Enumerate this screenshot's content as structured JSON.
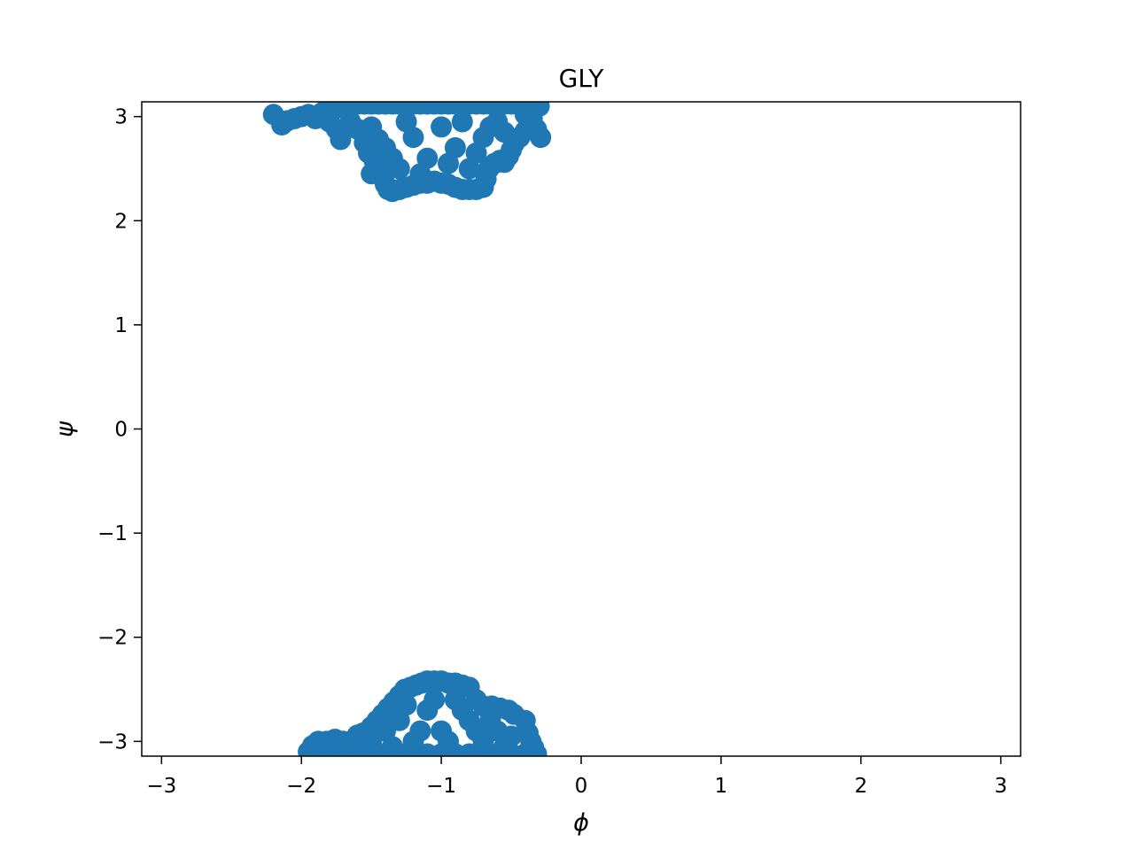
{
  "chart_data": {
    "type": "scatter",
    "title": "GLY",
    "xlabel": "ϕ",
    "ylabel": "ψ",
    "xlim": [
      -3.1416,
      3.1416
    ],
    "ylim": [
      -3.1416,
      3.1416
    ],
    "x_ticks": [
      {
        "value": -3,
        "label": "−3"
      },
      {
        "value": -2,
        "label": "−2"
      },
      {
        "value": -1,
        "label": "−1"
      },
      {
        "value": 0,
        "label": "0"
      },
      {
        "value": 1,
        "label": "1"
      },
      {
        "value": 2,
        "label": "2"
      },
      {
        "value": 3,
        "label": "3"
      }
    ],
    "y_ticks": [
      {
        "value": 3,
        "label": "3"
      },
      {
        "value": 2,
        "label": "2"
      },
      {
        "value": 1,
        "label": "1"
      },
      {
        "value": 0,
        "label": "0"
      },
      {
        "value": -1,
        "label": "−1"
      },
      {
        "value": -2,
        "label": "−2"
      },
      {
        "value": -3,
        "label": "−3"
      }
    ],
    "grid": false,
    "marker_color": "#1f77b4",
    "series": [
      {
        "points": [
          [
            -2.2,
            3.02
          ],
          [
            -2.14,
            2.92
          ],
          [
            -2.1,
            2.96
          ],
          [
            -2.05,
            2.98
          ],
          [
            -2.0,
            3.0
          ],
          [
            -1.95,
            3.02
          ],
          [
            -1.9,
            2.98
          ],
          [
            -1.85,
            3.04
          ],
          [
            -1.8,
            3.06
          ],
          [
            -1.75,
            3.08
          ],
          [
            -1.7,
            3.1
          ],
          [
            -1.65,
            3.12
          ],
          [
            -1.6,
            3.12
          ],
          [
            -1.55,
            3.12
          ],
          [
            -1.5,
            3.12
          ],
          [
            -1.45,
            3.12
          ],
          [
            -1.4,
            3.12
          ],
          [
            -1.35,
            3.12
          ],
          [
            -1.3,
            3.12
          ],
          [
            -1.25,
            3.12
          ],
          [
            -1.2,
            3.12
          ],
          [
            -1.15,
            3.12
          ],
          [
            -1.1,
            3.12
          ],
          [
            -1.05,
            3.12
          ],
          [
            -1.0,
            3.12
          ],
          [
            -0.95,
            3.12
          ],
          [
            -0.9,
            3.12
          ],
          [
            -0.85,
            3.12
          ],
          [
            -0.8,
            3.12
          ],
          [
            -0.75,
            3.12
          ],
          [
            -0.7,
            3.12
          ],
          [
            -0.65,
            3.12
          ],
          [
            -0.6,
            3.12
          ],
          [
            -0.55,
            3.12
          ],
          [
            -0.5,
            3.12
          ],
          [
            -0.45,
            3.12
          ],
          [
            -0.4,
            3.12
          ],
          [
            -0.35,
            3.1
          ],
          [
            -0.3,
            3.1
          ],
          [
            -1.8,
            2.95
          ],
          [
            -1.75,
            2.88
          ],
          [
            -1.72,
            2.78
          ],
          [
            -1.65,
            2.95
          ],
          [
            -1.6,
            2.88
          ],
          [
            -1.55,
            2.75
          ],
          [
            -1.52,
            2.65
          ],
          [
            -1.48,
            2.58
          ],
          [
            -1.45,
            2.5
          ],
          [
            -1.42,
            2.42
          ],
          [
            -1.4,
            2.35
          ],
          [
            -1.38,
            2.3
          ],
          [
            -1.35,
            2.28
          ],
          [
            -1.3,
            2.3
          ],
          [
            -1.25,
            2.32
          ],
          [
            -1.2,
            2.34
          ],
          [
            -1.15,
            2.36
          ],
          [
            -1.1,
            2.36
          ],
          [
            -1.05,
            2.38
          ],
          [
            -1.0,
            2.36
          ],
          [
            -0.95,
            2.35
          ],
          [
            -0.9,
            2.32
          ],
          [
            -0.85,
            2.3
          ],
          [
            -0.8,
            2.3
          ],
          [
            -0.75,
            2.3
          ],
          [
            -0.7,
            2.32
          ],
          [
            -0.68,
            2.4
          ],
          [
            -0.66,
            2.5
          ],
          [
            -0.62,
            2.55
          ],
          [
            -0.58,
            2.58
          ],
          [
            -0.55,
            2.56
          ],
          [
            -0.52,
            2.62
          ],
          [
            -0.5,
            2.68
          ],
          [
            -0.48,
            2.74
          ],
          [
            -0.44,
            2.8
          ],
          [
            -0.4,
            2.86
          ],
          [
            -0.36,
            2.9
          ],
          [
            -0.32,
            2.88
          ],
          [
            -0.29,
            2.8
          ],
          [
            -0.35,
            2.98
          ],
          [
            -0.4,
            3.02
          ],
          [
            -1.5,
            2.9
          ],
          [
            -1.4,
            2.7
          ],
          [
            -1.3,
            2.5
          ],
          [
            -1.2,
            2.8
          ],
          [
            -1.1,
            2.6
          ],
          [
            -1.0,
            2.9
          ],
          [
            -0.9,
            2.7
          ],
          [
            -0.8,
            2.5
          ],
          [
            -0.7,
            2.8
          ],
          [
            -0.6,
            2.95
          ],
          [
            -1.5,
            2.45
          ],
          [
            -1.25,
            2.95
          ],
          [
            -1.15,
            2.45
          ],
          [
            -0.95,
            2.55
          ],
          [
            -0.85,
            2.95
          ],
          [
            -0.75,
            2.65
          ],
          [
            -0.65,
            2.9
          ],
          [
            -0.55,
            2.85
          ],
          [
            -1.45,
            2.78
          ],
          [
            -1.35,
            2.6
          ],
          [
            -1.95,
            -3.1
          ],
          [
            -1.92,
            -3.04
          ],
          [
            -1.88,
            -3.0
          ],
          [
            -1.82,
            -3.0
          ],
          [
            -1.76,
            -2.98
          ],
          [
            -1.7,
            -3.0
          ],
          [
            -1.64,
            -3.02
          ],
          [
            -1.6,
            -2.94
          ],
          [
            -1.56,
            -2.92
          ],
          [
            -1.5,
            -2.86
          ],
          [
            -1.46,
            -2.8
          ],
          [
            -1.42,
            -2.74
          ],
          [
            -1.38,
            -2.68
          ],
          [
            -1.34,
            -2.62
          ],
          [
            -1.3,
            -2.56
          ],
          [
            -1.26,
            -2.5
          ],
          [
            -1.22,
            -2.48
          ],
          [
            -1.18,
            -2.46
          ],
          [
            -1.14,
            -2.44
          ],
          [
            -1.1,
            -2.42
          ],
          [
            -1.05,
            -2.42
          ],
          [
            -1.0,
            -2.42
          ],
          [
            -0.95,
            -2.44
          ],
          [
            -0.9,
            -2.44
          ],
          [
            -0.85,
            -2.46
          ],
          [
            -0.8,
            -2.48
          ],
          [
            -0.75,
            -2.6
          ],
          [
            -0.7,
            -2.66
          ],
          [
            -0.64,
            -2.66
          ],
          [
            -0.58,
            -2.68
          ],
          [
            -0.52,
            -2.7
          ],
          [
            -0.48,
            -2.74
          ],
          [
            -0.4,
            -2.8
          ],
          [
            -0.38,
            -2.92
          ],
          [
            -0.36,
            -3.0
          ],
          [
            -0.34,
            -3.06
          ],
          [
            -0.32,
            -3.12
          ],
          [
            -0.4,
            -3.12
          ],
          [
            -0.5,
            -3.12
          ],
          [
            -0.6,
            -3.12
          ],
          [
            -0.7,
            -3.12
          ],
          [
            -0.8,
            -3.12
          ],
          [
            -0.9,
            -3.12
          ],
          [
            -1.0,
            -3.12
          ],
          [
            -1.1,
            -3.12
          ],
          [
            -1.2,
            -3.12
          ],
          [
            -1.3,
            -3.12
          ],
          [
            -1.4,
            -3.12
          ],
          [
            -1.5,
            -3.12
          ],
          [
            -1.6,
            -3.12
          ],
          [
            -1.7,
            -3.12
          ],
          [
            -1.8,
            -3.12
          ],
          [
            -1.9,
            -3.12
          ],
          [
            -1.4,
            -2.9
          ],
          [
            -1.3,
            -2.8
          ],
          [
            -1.2,
            -3.0
          ],
          [
            -1.1,
            -2.7
          ],
          [
            -1.0,
            -2.9
          ],
          [
            -0.9,
            -2.6
          ],
          [
            -0.8,
            -2.8
          ],
          [
            -0.7,
            -3.0
          ],
          [
            -0.6,
            -2.9
          ],
          [
            -0.5,
            -2.95
          ],
          [
            -1.5,
            -3.0
          ],
          [
            -1.25,
            -2.65
          ],
          [
            -1.15,
            -2.9
          ],
          [
            -1.05,
            -2.6
          ],
          [
            -0.95,
            -3.0
          ],
          [
            -0.85,
            -2.7
          ],
          [
            -0.75,
            -2.9
          ],
          [
            -0.65,
            -2.8
          ],
          [
            -0.55,
            -3.05
          ],
          [
            -1.35,
            -3.05
          ]
        ]
      }
    ]
  }
}
